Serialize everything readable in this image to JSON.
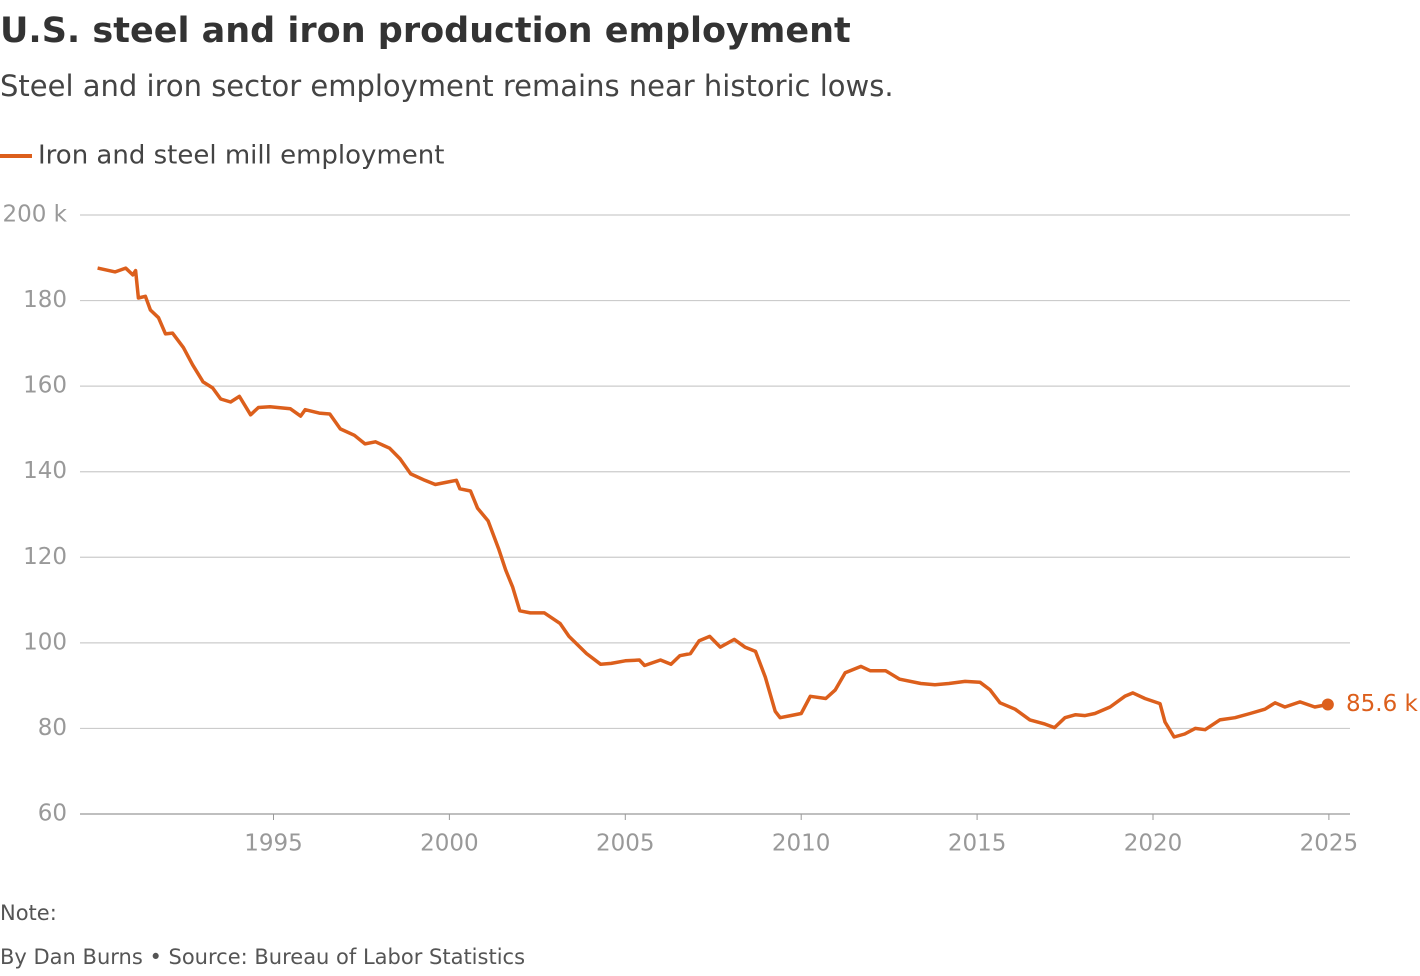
{
  "chart_data": {
    "type": "line",
    "title": "U.S. steel and iron production employment",
    "subtitle": "Steel and iron sector employment remains near historic lows.",
    "note": "Note:",
    "byline": "By Dan Burns • Source: Bureau of Labor Statistics",
    "x": [
      1990.0,
      1990.5,
      1990.8,
      1991.0,
      1991.08,
      1991.16,
      1991.36,
      1991.5,
      1991.73,
      1991.93,
      1992.13,
      1992.44,
      1992.7,
      1993.0,
      1993.27,
      1993.5,
      1993.78,
      1994.03,
      1994.35,
      1994.57,
      1994.9,
      1995.48,
      1995.77,
      1995.9,
      1996.3,
      1996.6,
      1996.9,
      1997.3,
      1997.6,
      1997.9,
      1998.3,
      1998.6,
      1998.9,
      1999.3,
      1999.6,
      1999.9,
      2000.2,
      2000.3,
      2000.6,
      2000.8,
      2001.1,
      2001.4,
      2001.6,
      2001.8,
      2002.0,
      2002.3,
      2002.7,
      2003.15,
      2003.4,
      2003.9,
      2004.3,
      2004.6,
      2005.0,
      2005.4,
      2005.55,
      2006.0,
      2006.3,
      2006.55,
      2006.85,
      2007.1,
      2007.4,
      2007.7,
      2008.1,
      2008.4,
      2008.7,
      2008.98,
      2009.26,
      2009.4,
      2009.7,
      2010.0,
      2010.26,
      2010.7,
      2010.97,
      2011.25,
      2011.7,
      2011.96,
      2012.4,
      2012.8,
      2013.4,
      2013.8,
      2014.2,
      2014.66,
      2015.08,
      2015.37,
      2015.65,
      2016.08,
      2016.5,
      2016.93,
      2017.2,
      2017.5,
      2017.8,
      2018.07,
      2018.35,
      2018.78,
      2019.2,
      2019.43,
      2019.77,
      2020.2,
      2020.34,
      2020.6,
      2020.9,
      2021.2,
      2021.48,
      2021.9,
      2022.33,
      2022.76,
      2023.18,
      2023.47,
      2023.75,
      2024.18,
      2024.6,
      2024.97
    ],
    "series": [
      {
        "name": "Iron and steel mill employment",
        "color": "#dc5f1c",
        "values": [
          187.6,
          186.7,
          187.6,
          186,
          187,
          180.6,
          181,
          177.8,
          176,
          172.2,
          172.4,
          169,
          165,
          161,
          159.6,
          157,
          156.3,
          157.6,
          153.3,
          155,
          155.2,
          154.7,
          153,
          154.5,
          153.7,
          153.5,
          150,
          148.5,
          146.5,
          147,
          145.5,
          143,
          139.5,
          138,
          137,
          137.5,
          138,
          136,
          135.5,
          131.5,
          128.5,
          122,
          117,
          113,
          107.5,
          107,
          107,
          104.5,
          101.5,
          97.5,
          95,
          95.2,
          95.8,
          96,
          94.7,
          96,
          95,
          97,
          97.5,
          100.5,
          101.5,
          99,
          100.8,
          99,
          98,
          92,
          84,
          82.5,
          83,
          83.5,
          87.5,
          87,
          89,
          93,
          94.5,
          93.5,
          93.5,
          91.5,
          90.5,
          90.2,
          90.5,
          91,
          90.8,
          89,
          86,
          84.5,
          82,
          81,
          80.2,
          82.5,
          83.2,
          83,
          83.5,
          85,
          87.5,
          88.3,
          87,
          85.8,
          81.5,
          78,
          78.7,
          80,
          79.7,
          82,
          82.5,
          83.5,
          84.5,
          86,
          85,
          86.2,
          85,
          85.6
        ]
      }
    ],
    "end_label": {
      "x": 2024.97,
      "value": 85.6,
      "label": "85.6 k"
    },
    "xlim": [
      1989.5,
      2025.6
    ],
    "xticks": [
      1995,
      2000,
      2005,
      2010,
      2015,
      2020,
      2025
    ],
    "ylim": [
      60,
      200
    ],
    "yticks": [
      60,
      80,
      100,
      120,
      140,
      160,
      180,
      {
        "value": 200,
        "label": "200 k"
      }
    ],
    "grid": true
  }
}
